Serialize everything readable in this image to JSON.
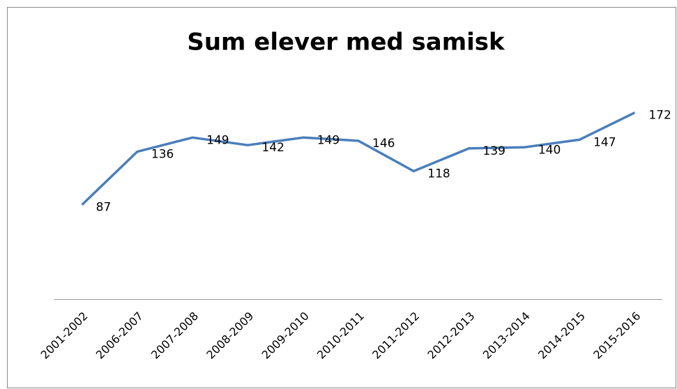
{
  "chart_data": {
    "type": "line",
    "title": "Sum elever med samisk",
    "categories": [
      "2001-2002",
      "2006-2007",
      "2007-2008",
      "2008-2009",
      "2009-2010",
      "2010-2011",
      "2011-2012",
      "2012-2013",
      "2013-2014",
      "2014-2015",
      "2015-2016"
    ],
    "series": [
      {
        "name": "Sum elever med samisk",
        "color": "#4a7ebb",
        "values": [
          87,
          136,
          149,
          142,
          149,
          146,
          118,
          139,
          140,
          147,
          172
        ]
      }
    ],
    "ylim": [
      0,
      200
    ]
  }
}
